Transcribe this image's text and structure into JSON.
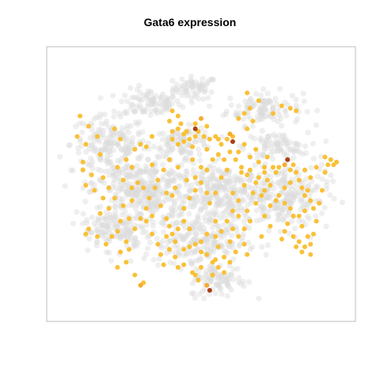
{
  "chart_data": {
    "type": "scatter",
    "title": "Gata6 expression",
    "xlabel": "",
    "ylabel": "",
    "xlim": [
      0,
      100
    ],
    "ylim": [
      0,
      100
    ],
    "grid": false,
    "legend": "none",
    "colors": {
      "background_cells": "#dcdcdc",
      "low": "#f9be2c",
      "mid": "#f5a623",
      "high": "#a8360a",
      "frame": "#bdbdbd"
    },
    "background_regions": [
      {
        "cx": 48,
        "cy": 88,
        "rx": 7,
        "ry": 4,
        "n": 60
      },
      {
        "cx": 32,
        "cy": 82,
        "rx": 10,
        "ry": 5,
        "n": 90
      },
      {
        "cx": 72,
        "cy": 80,
        "rx": 12,
        "ry": 6,
        "n": 110
      },
      {
        "cx": 18,
        "cy": 66,
        "rx": 12,
        "ry": 10,
        "n": 170
      },
      {
        "cx": 44,
        "cy": 67,
        "rx": 10,
        "ry": 5,
        "n": 90
      },
      {
        "cx": 76,
        "cy": 65,
        "rx": 10,
        "ry": 5,
        "n": 80
      },
      {
        "cx": 30,
        "cy": 48,
        "rx": 17,
        "ry": 13,
        "n": 380
      },
      {
        "cx": 58,
        "cy": 46,
        "rx": 14,
        "ry": 11,
        "n": 260
      },
      {
        "cx": 80,
        "cy": 46,
        "rx": 13,
        "ry": 12,
        "n": 210
      },
      {
        "cx": 48,
        "cy": 28,
        "rx": 16,
        "ry": 9,
        "n": 200
      },
      {
        "cx": 20,
        "cy": 33,
        "rx": 10,
        "ry": 7,
        "n": 110
      },
      {
        "cx": 56,
        "cy": 13,
        "rx": 9,
        "ry": 6,
        "n": 90
      }
    ],
    "expressing_points": [
      [
        9,
        56,
        1
      ],
      [
        10,
        50,
        1
      ],
      [
        12,
        54,
        1
      ],
      [
        9,
        59,
        1
      ],
      [
        10,
        66,
        1
      ],
      [
        7,
        69,
        1
      ],
      [
        11,
        73,
        1
      ],
      [
        8,
        77,
        1
      ],
      [
        14,
        69,
        1
      ],
      [
        15,
        62,
        1
      ],
      [
        13,
        48,
        1
      ],
      [
        16,
        45,
        1
      ],
      [
        18,
        41,
        1
      ],
      [
        15,
        39,
        1
      ],
      [
        11,
        33,
        1
      ],
      [
        10,
        31,
        1
      ],
      [
        14,
        30,
        1
      ],
      [
        19,
        30,
        1
      ],
      [
        17,
        27,
        1
      ],
      [
        21,
        32,
        1
      ],
      [
        22,
        24,
        1
      ],
      [
        24,
        20,
        1
      ],
      [
        21,
        18,
        1
      ],
      [
        25,
        25,
        1
      ],
      [
        27,
        15,
        1
      ],
      [
        30,
        12,
        1
      ],
      [
        29,
        11,
        2
      ],
      [
        24,
        28,
        1
      ],
      [
        22,
        36,
        1
      ],
      [
        26,
        44,
        1
      ],
      [
        28,
        51,
        1
      ],
      [
        30,
        49,
        1
      ],
      [
        26,
        57,
        1
      ],
      [
        24,
        60,
        1
      ],
      [
        27,
        64,
        1
      ],
      [
        29,
        66,
        1
      ],
      [
        33,
        58,
        1
      ],
      [
        34,
        49,
        1
      ],
      [
        38,
        47,
        1
      ],
      [
        36,
        42,
        1
      ],
      [
        38,
        37,
        1
      ],
      [
        39,
        34,
        1
      ],
      [
        33,
        31,
        1
      ],
      [
        31,
        36,
        1
      ],
      [
        35,
        27,
        1
      ],
      [
        36,
        23,
        1
      ],
      [
        37,
        19,
        1
      ],
      [
        39,
        25,
        1
      ],
      [
        41,
        22,
        1
      ],
      [
        42,
        18,
        1
      ],
      [
        44,
        19,
        1
      ],
      [
        47,
        16,
        1
      ],
      [
        49,
        13,
        1
      ],
      [
        48,
        15,
        1
      ],
      [
        50,
        18,
        1
      ],
      [
        52,
        11,
        2
      ],
      [
        53,
        9,
        3
      ],
      [
        54,
        15,
        1
      ],
      [
        55,
        21,
        1
      ],
      [
        56,
        26,
        1
      ],
      [
        55,
        30,
        1
      ],
      [
        57,
        32,
        1
      ],
      [
        52,
        31,
        1
      ],
      [
        50,
        28,
        1
      ],
      [
        46,
        33,
        1
      ],
      [
        44,
        36,
        1
      ],
      [
        42,
        33,
        1
      ],
      [
        44,
        41,
        1
      ],
      [
        46,
        45,
        1
      ],
      [
        48,
        48,
        1
      ],
      [
        50,
        51,
        1
      ],
      [
        52,
        47,
        1
      ],
      [
        53,
        43,
        1
      ],
      [
        55,
        47,
        1
      ],
      [
        57,
        53,
        1
      ],
      [
        59,
        56,
        1
      ],
      [
        61,
        47,
        1
      ],
      [
        63,
        44,
        1
      ],
      [
        61,
        40,
        1
      ],
      [
        59,
        36,
        1
      ],
      [
        61,
        33,
        1
      ],
      [
        63,
        38,
        1
      ],
      [
        60,
        28,
        1
      ],
      [
        58,
        22,
        1
      ],
      [
        56,
        18,
        1
      ],
      [
        55,
        36,
        1
      ],
      [
        66,
        40,
        1
      ],
      [
        68,
        47,
        1
      ],
      [
        69,
        51,
        1
      ],
      [
        67,
        56,
        1
      ],
      [
        70,
        59,
        1
      ],
      [
        72,
        57,
        1
      ],
      [
        73,
        61,
        1
      ],
      [
        75,
        57,
        1
      ],
      [
        76,
        55,
        1
      ],
      [
        77,
        57,
        1
      ],
      [
        79,
        58,
        2
      ],
      [
        80,
        60,
        3
      ],
      [
        81,
        56,
        1
      ],
      [
        82,
        58,
        1
      ],
      [
        83,
        55,
        1
      ],
      [
        84,
        52,
        1
      ],
      [
        85,
        49,
        1
      ],
      [
        86,
        46,
        1
      ],
      [
        87,
        48,
        1
      ],
      [
        88,
        44,
        1
      ],
      [
        86,
        40,
        1
      ],
      [
        84,
        38,
        1
      ],
      [
        85,
        34,
        1
      ],
      [
        87,
        30,
        1
      ],
      [
        88,
        27,
        1
      ],
      [
        89,
        31,
        1
      ],
      [
        90,
        36,
        1
      ],
      [
        89,
        41,
        1
      ],
      [
        91,
        43,
        1
      ],
      [
        92,
        48,
        1
      ],
      [
        93,
        55,
        1
      ],
      [
        94,
        58,
        1
      ],
      [
        95,
        60,
        1
      ],
      [
        96,
        58,
        1
      ],
      [
        97,
        59,
        1
      ],
      [
        93,
        61,
        1
      ],
      [
        90,
        57,
        1
      ],
      [
        88,
        53,
        1
      ],
      [
        86,
        56,
        1
      ],
      [
        81,
        51,
        1
      ],
      [
        79,
        49,
        1
      ],
      [
        77,
        46,
        1
      ],
      [
        76,
        44,
        1
      ],
      [
        79,
        43,
        1
      ],
      [
        81,
        41,
        1
      ],
      [
        82,
        38,
        1
      ],
      [
        80,
        35,
        1
      ],
      [
        79,
        32,
        1
      ],
      [
        78,
        29,
        1
      ],
      [
        82,
        30,
        1
      ],
      [
        84,
        28,
        1
      ],
      [
        86,
        26,
        1
      ],
      [
        88,
        23,
        1
      ],
      [
        85,
        24,
        1
      ],
      [
        83,
        26,
        1
      ],
      [
        74,
        42,
        1
      ],
      [
        72,
        38,
        1
      ],
      [
        74,
        34,
        1
      ],
      [
        71,
        30,
        1
      ],
      [
        72,
        48,
        1
      ],
      [
        73,
        52,
        1
      ],
      [
        65,
        50,
        1
      ],
      [
        64,
        55,
        1
      ],
      [
        62,
        60,
        1
      ],
      [
        60,
        63,
        1
      ],
      [
        57,
        66,
        1
      ],
      [
        59,
        68,
        1
      ],
      [
        61,
        69,
        1
      ],
      [
        56,
        68,
        1
      ],
      [
        53,
        68,
        1
      ],
      [
        51,
        69,
        1
      ],
      [
        48,
        69,
        1
      ],
      [
        46,
        68,
        1
      ],
      [
        44,
        67,
        1
      ],
      [
        42,
        66,
        1
      ],
      [
        40,
        68,
        1
      ],
      [
        40,
        71,
        1
      ],
      [
        42,
        72,
        1
      ],
      [
        45,
        71,
        1
      ],
      [
        43,
        74,
        1
      ],
      [
        42,
        77,
        1
      ],
      [
        40,
        79,
        1
      ],
      [
        39,
        75,
        1
      ],
      [
        48,
        74,
        1
      ],
      [
        49,
        71,
        1
      ],
      [
        50,
        76,
        2
      ],
      [
        52,
        73,
        1
      ],
      [
        48,
        72,
        3
      ],
      [
        44,
        70,
        1
      ],
      [
        47,
        65,
        1
      ],
      [
        55,
        69,
        1
      ],
      [
        60,
        70,
        2
      ],
      [
        61,
        67,
        3
      ],
      [
        63,
        76,
        1
      ],
      [
        65,
        78,
        1
      ],
      [
        67,
        80,
        1
      ],
      [
        68,
        75,
        1
      ],
      [
        66,
        72,
        1
      ],
      [
        70,
        83,
        1
      ],
      [
        66,
        86,
        1
      ],
      [
        75,
        78,
        1
      ],
      [
        78,
        81,
        1
      ],
      [
        81,
        80,
        1
      ],
      [
        83,
        79,
        1
      ],
      [
        33,
        69,
        1
      ],
      [
        31,
        65,
        1
      ],
      [
        20,
        72,
        1
      ],
      [
        22,
        68,
        1
      ],
      [
        54,
        60,
        1
      ],
      [
        52,
        56,
        1
      ],
      [
        50,
        57,
        1
      ],
      [
        48,
        53,
        1
      ],
      [
        45,
        52,
        1
      ],
      [
        41,
        49,
        1
      ],
      [
        40,
        46,
        1
      ],
      [
        37,
        56,
        1
      ],
      [
        39,
        60,
        1
      ],
      [
        42,
        57,
        1
      ],
      [
        47,
        60,
        1
      ],
      [
        52,
        64,
        1
      ],
      [
        56,
        62,
        1
      ],
      [
        58,
        60,
        1
      ],
      [
        63,
        63,
        1
      ],
      [
        65,
        66,
        1
      ],
      [
        67,
        61,
        1
      ],
      [
        69,
        64,
        1
      ],
      [
        64,
        57,
        1
      ],
      [
        66,
        54,
        1
      ],
      [
        70,
        53,
        1
      ],
      [
        72,
        55,
        1
      ],
      [
        74,
        50,
        1
      ],
      [
        71,
        46,
        1
      ],
      [
        69,
        43,
        1
      ],
      [
        67,
        36,
        1
      ],
      [
        65,
        33,
        1
      ],
      [
        63,
        30,
        1
      ],
      [
        65,
        27,
        1
      ],
      [
        66,
        23,
        1
      ],
      [
        62,
        24,
        1
      ],
      [
        60,
        20,
        1
      ],
      [
        58,
        16,
        1
      ],
      [
        54,
        20,
        1
      ],
      [
        52,
        23,
        1
      ],
      [
        50,
        24,
        1
      ],
      [
        48,
        27,
        1
      ],
      [
        46,
        26,
        1
      ],
      [
        44,
        25,
        1
      ],
      [
        41,
        28,
        1
      ],
      [
        40,
        31,
        1
      ],
      [
        38,
        30,
        1
      ],
      [
        33,
        38,
        1
      ],
      [
        31,
        41,
        1
      ],
      [
        29,
        37,
        1
      ],
      [
        27,
        33,
        1
      ],
      [
        25,
        37,
        1
      ],
      [
        23,
        42,
        1
      ],
      [
        20,
        45,
        1
      ],
      [
        18,
        49,
        1
      ],
      [
        16,
        53,
        1
      ],
      [
        21,
        57,
        1
      ],
      [
        23,
        52,
        1
      ],
      [
        26,
        49,
        1
      ],
      [
        32,
        45,
        1
      ],
      [
        35,
        52,
        1
      ]
    ]
  }
}
